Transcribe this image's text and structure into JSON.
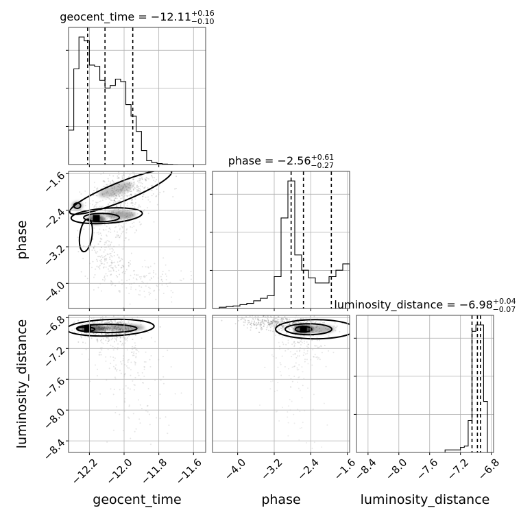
{
  "chart_data": {
    "type": "corner",
    "parameters": [
      {
        "name": "geocent_time",
        "range": [
          -12.32,
          -11.53
        ],
        "ticks": [
          -12.2,
          -12.0,
          -11.8,
          -11.6
        ],
        "tick_labels": [
          "−12.2",
          "−12.0",
          "−11.8",
          "−11.6"
        ],
        "title_value": "−12.11",
        "title_plus": "+0.16",
        "title_minus": "−0.10",
        "quantiles": [
          -12.21,
          -12.11,
          -11.95
        ],
        "histogram": {
          "edges": [
            -12.32,
            -12.29,
            -12.26,
            -12.23,
            -12.2,
            -12.17,
            -12.14,
            -12.11,
            -12.08,
            -12.05,
            -12.02,
            -11.99,
            -11.96,
            -11.93,
            -11.9,
            -11.87,
            -11.84,
            -11.81,
            -11.78,
            -11.75,
            -11.72,
            -11.69
          ],
          "counts": [
            0.27,
            0.75,
            1.0,
            0.97,
            0.78,
            0.77,
            0.66,
            0.6,
            0.62,
            0.67,
            0.65,
            0.47,
            0.38,
            0.26,
            0.11,
            0.03,
            0.015,
            0.008,
            0.004,
            0.002,
            0.0
          ]
        }
      },
      {
        "name": "phase",
        "range": [
          -4.55,
          -1.55
        ],
        "ticks": [
          -4.0,
          -3.2,
          -2.4,
          -1.6
        ],
        "tick_labels": [
          "−4.0",
          "−3.2",
          "−2.4",
          "−1.6"
        ],
        "title_value": "−2.56",
        "title_plus": "+0.61",
        "title_minus": "−0.27",
        "quantiles": [
          -2.83,
          -2.56,
          -1.95
        ],
        "histogram": {
          "edges": [
            -4.55,
            -4.4,
            -4.25,
            -4.1,
            -3.95,
            -3.8,
            -3.65,
            -3.5,
            -3.35,
            -3.2,
            -3.05,
            -2.9,
            -2.75,
            -2.6,
            -2.45,
            -2.3,
            -2.15,
            -2.0,
            -1.85,
            -1.7,
            -1.55
          ],
          "counts": [
            0.0,
            0.01,
            0.015,
            0.02,
            0.03,
            0.04,
            0.06,
            0.08,
            0.1,
            0.25,
            0.71,
            1.0,
            0.42,
            0.3,
            0.24,
            0.2,
            0.2,
            0.25,
            0.3,
            0.35
          ]
        }
      },
      {
        "name": "luminosity_distance",
        "range": [
          -8.55,
          -6.77
        ],
        "ticks": [
          -8.4,
          -8.0,
          -7.6,
          -7.2,
          -6.8
        ],
        "tick_labels": [
          "−8.4",
          "−8.0",
          "−7.6",
          "−7.2",
          "−6.8"
        ],
        "title_value": "−6.98",
        "title_plus": "+0.04",
        "title_minus": "−0.07",
        "quantiles": [
          -7.05,
          -6.98,
          -6.94
        ],
        "histogram": {
          "edges": [
            -7.4,
            -7.25,
            -7.2,
            -7.15,
            -7.1,
            -7.05,
            -7.0,
            -6.95,
            -6.9,
            -6.85,
            -6.8
          ],
          "counts": [
            0.02,
            0.02,
            0.04,
            0.05,
            0.25,
            0.95,
            1.0,
            1.0,
            0.4,
            0.0
          ]
        }
      }
    ],
    "pairs": [
      {
        "x": "geocent_time",
        "y": "phase"
      },
      {
        "x": "geocent_time",
        "y": "luminosity_distance"
      },
      {
        "x": "phase",
        "y": "luminosity_distance"
      }
    ],
    "grid": true
  }
}
